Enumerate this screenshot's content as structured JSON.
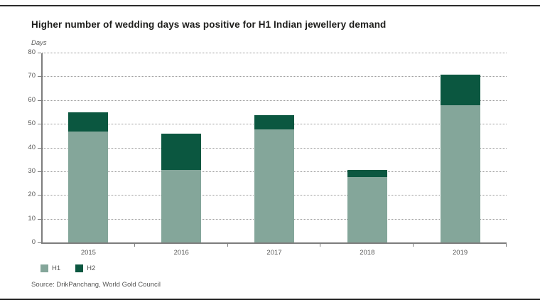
{
  "chart_data": {
    "type": "bar",
    "stacked": true,
    "title": "Higher number of wedding days was positive for H1 Indian jewellery demand",
    "unit_label": "Days",
    "categories": [
      "2015",
      "2016",
      "2017",
      "2018",
      "2019"
    ],
    "series": [
      {
        "name": "H1",
        "color": "#84A69A",
        "values": [
          47,
          31,
          48,
          28,
          58
        ]
      },
      {
        "name": "H2",
        "color": "#0B5740",
        "values": [
          8,
          15,
          6,
          3,
          13
        ]
      }
    ],
    "totals": [
      55,
      46,
      54,
      31,
      71
    ],
    "ylim": [
      0,
      80
    ],
    "ytick_step": 10,
    "yticks": [
      0,
      10,
      20,
      30,
      40,
      50,
      60,
      70,
      80
    ],
    "grid": "horizontal-dotted",
    "legend_position": "bottom-left",
    "source": "Source: DrikPanchang, World Gold Council"
  }
}
